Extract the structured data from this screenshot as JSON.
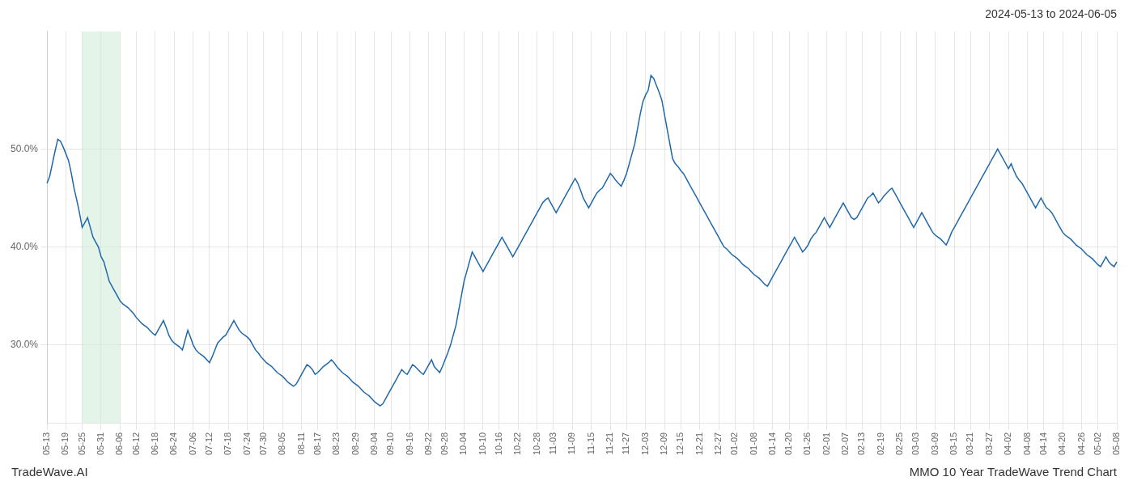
{
  "chart_data": {
    "type": "line",
    "title": "2024-05-13 to 2024-06-05",
    "annotations": [
      "TradeWave.AI",
      "MMO 10 Year TradeWave Trend Chart"
    ],
    "color": "#2068a8",
    "grid": true,
    "legend": false,
    "span": {
      "from": "05-25",
      "to": "06-06",
      "color": "#d4edda"
    },
    "ylim": [
      22,
      62
    ],
    "yticks": [
      {
        "value": 30.0,
        "label": "30.0%"
      },
      {
        "value": 40.0,
        "label": "40.0%"
      },
      {
        "value": 50.0,
        "label": "50.0%"
      }
    ],
    "categories": [
      "05-13",
      null,
      null,
      null,
      null,
      null,
      null,
      "05-19",
      null,
      null,
      null,
      null,
      null,
      "05-25",
      null,
      null,
      null,
      null,
      null,
      null,
      "05-31",
      null,
      null,
      null,
      null,
      null,
      null,
      "06-06",
      null,
      null,
      null,
      null,
      null,
      "06-12",
      null,
      null,
      null,
      null,
      null,
      null,
      "06-18",
      null,
      null,
      null,
      null,
      null,
      null,
      "06-24",
      null,
      null,
      null,
      null,
      null,
      null,
      "07-06",
      null,
      null,
      null,
      null,
      null,
      "07-12",
      null,
      null,
      null,
      null,
      null,
      null,
      "07-18",
      null,
      null,
      null,
      null,
      null,
      null,
      "07-24",
      null,
      null,
      null,
      null,
      null,
      "07-30",
      null,
      null,
      null,
      null,
      null,
      null,
      "08-05",
      null,
      null,
      null,
      null,
      null,
      null,
      "08-11",
      null,
      null,
      null,
      null,
      null,
      "08-17",
      null,
      null,
      null,
      null,
      null,
      null,
      "08-23",
      null,
      null,
      null,
      null,
      null,
      null,
      "08-29",
      null,
      null,
      null,
      null,
      null,
      null,
      "09-04",
      null,
      null,
      null,
      null,
      null,
      "09-10",
      null,
      null,
      null,
      null,
      null,
      null,
      "09-16",
      null,
      null,
      null,
      null,
      null,
      null,
      "09-22",
      null,
      null,
      null,
      null,
      null,
      "09-28",
      null,
      null,
      null,
      null,
      null,
      null,
      "10-04",
      null,
      null,
      null,
      null,
      null,
      null,
      "10-10",
      null,
      null,
      null,
      null,
      null,
      "10-16",
      null,
      null,
      null,
      null,
      null,
      null,
      "10-22",
      null,
      null,
      null,
      null,
      null,
      null,
      "10-28",
      null,
      null,
      null,
      null,
      null,
      "11-03",
      null,
      null,
      null,
      null,
      null,
      null,
      "11-09",
      null,
      null,
      null,
      null,
      null,
      null,
      "11-15",
      null,
      null,
      null,
      null,
      null,
      null,
      "11-21",
      null,
      null,
      null,
      null,
      null,
      "11-27",
      null,
      null,
      null,
      null,
      null,
      null,
      "12-03",
      null,
      null,
      null,
      null,
      null,
      null,
      "12-09",
      null,
      null,
      null,
      null,
      null,
      "12-15",
      null,
      null,
      null,
      null,
      null,
      null,
      "12-21",
      null,
      null,
      null,
      null,
      null,
      null,
      "12-27",
      null,
      null,
      null,
      null,
      null,
      "01-02",
      null,
      null,
      null,
      null,
      null,
      null,
      "01-08",
      null,
      null,
      null,
      null,
      null,
      null,
      "01-14",
      null,
      null,
      null,
      null,
      null,
      "01-20",
      null,
      null,
      null,
      null,
      null,
      null,
      "01-26",
      null,
      null,
      null,
      null,
      null,
      null,
      "02-01",
      null,
      null,
      null,
      null,
      null,
      null,
      "02-07",
      null,
      null,
      null,
      null,
      null,
      "02-13",
      null,
      null,
      null,
      null,
      null,
      null,
      "02-19",
      null,
      null,
      null,
      null,
      null,
      null,
      "02-25",
      null,
      null,
      null,
      null,
      null,
      "03-03",
      null,
      null,
      null,
      null,
      null,
      null,
      "03-09",
      null,
      null,
      null,
      null,
      null,
      null,
      "03-15",
      null,
      null,
      null,
      null,
      null,
      "03-21",
      null,
      null,
      null,
      null,
      null,
      null,
      "03-27",
      null,
      null,
      null,
      null,
      null,
      null,
      "04-02",
      null,
      null,
      null,
      null,
      null,
      null,
      "04-08",
      null,
      null,
      null,
      null,
      null,
      "04-14",
      null,
      null,
      null,
      null,
      null,
      null,
      "04-20",
      null,
      null,
      null,
      null,
      null,
      null,
      "04-26",
      null,
      null,
      null,
      null,
      null,
      "05-02",
      null,
      null,
      null,
      null,
      null,
      null,
      "05-08"
    ],
    "values": [
      46.5,
      47.2,
      48.5,
      49.8,
      51.0,
      50.8,
      50.2,
      49.5,
      48.8,
      47.5,
      46.0,
      44.8,
      43.5,
      42.0,
      42.5,
      43.0,
      42.0,
      41.0,
      40.5,
      40.0,
      39.0,
      38.5,
      37.5,
      36.5,
      36.0,
      35.5,
      35.0,
      34.5,
      34.2,
      34.0,
      33.8,
      33.5,
      33.2,
      32.8,
      32.5,
      32.2,
      32.0,
      31.8,
      31.5,
      31.2,
      31.0,
      31.5,
      32.0,
      32.5,
      31.8,
      31.0,
      30.5,
      30.2,
      30.0,
      29.8,
      29.5,
      30.5,
      31.5,
      30.8,
      30.0,
      29.5,
      29.2,
      29.0,
      28.8,
      28.5,
      28.2,
      28.8,
      29.5,
      30.2,
      30.5,
      30.8,
      31.0,
      31.5,
      32.0,
      32.5,
      32.0,
      31.5,
      31.2,
      31.0,
      30.8,
      30.5,
      30.0,
      29.5,
      29.2,
      28.8,
      28.5,
      28.2,
      28.0,
      27.8,
      27.5,
      27.2,
      27.0,
      26.8,
      26.5,
      26.2,
      26.0,
      25.8,
      26.0,
      26.5,
      27.0,
      27.5,
      28.0,
      27.8,
      27.5,
      27.0,
      27.2,
      27.5,
      27.8,
      28.0,
      28.2,
      28.5,
      28.2,
      27.8,
      27.5,
      27.2,
      27.0,
      26.8,
      26.5,
      26.2,
      26.0,
      25.8,
      25.5,
      25.2,
      25.0,
      24.8,
      24.5,
      24.2,
      24.0,
      23.8,
      24.0,
      24.5,
      25.0,
      25.5,
      26.0,
      26.5,
      27.0,
      27.5,
      27.2,
      27.0,
      27.5,
      28.0,
      27.8,
      27.5,
      27.2,
      27.0,
      27.5,
      28.0,
      28.5,
      27.8,
      27.5,
      27.2,
      27.8,
      28.5,
      29.2,
      30.0,
      31.0,
      32.0,
      33.5,
      35.0,
      36.5,
      37.5,
      38.5,
      39.5,
      39.0,
      38.5,
      38.0,
      37.5,
      38.0,
      38.5,
      39.0,
      39.5,
      40.0,
      40.5,
      41.0,
      40.5,
      40.0,
      39.5,
      39.0,
      39.5,
      40.0,
      40.5,
      41.0,
      41.5,
      42.0,
      42.5,
      43.0,
      43.5,
      44.0,
      44.5,
      44.8,
      45.0,
      44.5,
      44.0,
      43.5,
      44.0,
      44.5,
      45.0,
      45.5,
      46.0,
      46.5,
      47.0,
      46.5,
      45.8,
      45.0,
      44.5,
      44.0,
      44.5,
      45.0,
      45.5,
      45.8,
      46.0,
      46.5,
      47.0,
      47.5,
      47.2,
      46.8,
      46.5,
      46.2,
      46.8,
      47.5,
      48.5,
      49.5,
      50.5,
      52.0,
      53.5,
      54.8,
      55.5,
      56.0,
      57.5,
      57.2,
      56.5,
      55.8,
      55.0,
      53.5,
      52.0,
      50.5,
      49.0,
      48.5,
      48.2,
      47.8,
      47.5,
      47.0,
      46.5,
      46.0,
      45.5,
      45.0,
      44.5,
      44.0,
      43.5,
      43.0,
      42.5,
      42.0,
      41.5,
      41.0,
      40.5,
      40.0,
      39.8,
      39.5,
      39.2,
      39.0,
      38.8,
      38.5,
      38.2,
      38.0,
      37.8,
      37.5,
      37.2,
      37.0,
      36.8,
      36.5,
      36.2,
      36.0,
      36.5,
      37.0,
      37.5,
      38.0,
      38.5,
      39.0,
      39.5,
      40.0,
      40.5,
      41.0,
      40.5,
      40.0,
      39.5,
      39.8,
      40.2,
      40.8,
      41.2,
      41.5,
      42.0,
      42.5,
      43.0,
      42.5,
      42.0,
      42.5,
      43.0,
      43.5,
      44.0,
      44.5,
      44.0,
      43.5,
      43.0,
      42.8,
      43.0,
      43.5,
      44.0,
      44.5,
      45.0,
      45.2,
      45.5,
      45.0,
      44.5,
      44.8,
      45.2,
      45.5,
      45.8,
      46.0,
      45.5,
      45.0,
      44.5,
      44.0,
      43.5,
      43.0,
      42.5,
      42.0,
      42.5,
      43.0,
      43.5,
      43.0,
      42.5,
      42.0,
      41.5,
      41.2,
      41.0,
      40.8,
      40.5,
      40.2,
      40.8,
      41.5,
      42.0,
      42.5,
      43.0,
      43.5,
      44.0,
      44.5,
      45.0,
      45.5,
      46.0,
      46.5,
      47.0,
      47.5,
      48.0,
      48.5,
      49.0,
      49.5,
      50.0,
      49.5,
      49.0,
      48.5,
      48.0,
      48.5,
      47.8,
      47.2,
      46.8,
      46.5,
      46.0,
      45.5,
      45.0,
      44.5,
      44.0,
      44.5,
      45.0,
      44.5,
      44.0,
      43.8,
      43.5,
      43.0,
      42.5,
      42.0,
      41.5,
      41.2,
      41.0,
      40.8,
      40.5,
      40.2,
      40.0,
      39.8,
      39.5,
      39.2,
      39.0,
      38.8,
      38.5,
      38.2,
      38.0,
      38.5,
      39.0,
      38.5,
      38.2,
      38.0,
      38.5
    ]
  }
}
